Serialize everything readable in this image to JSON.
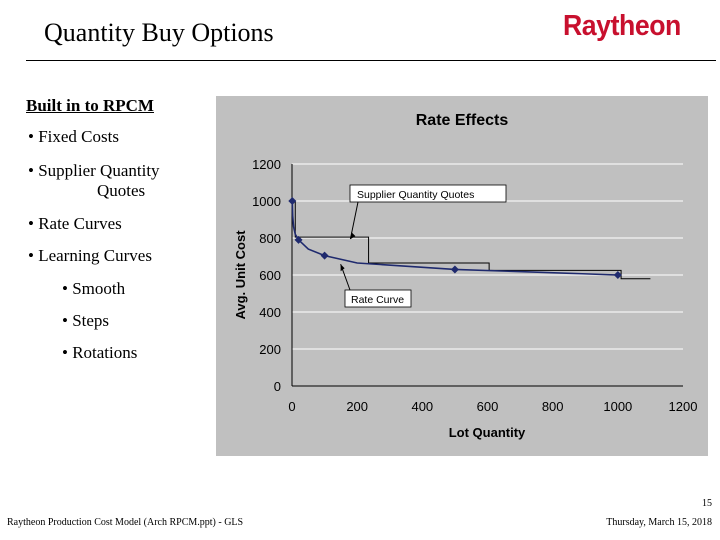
{
  "slide": {
    "title": "Quantity Buy Options",
    "logo": "Raytheon",
    "page_number": "15",
    "footer_left": "Raytheon Production Cost Model (Arch RPCM.ppt) - GLS",
    "footer_right": "Thursday, March 15, 2018"
  },
  "bullets": {
    "heading": "Built in to RPCM",
    "items": [
      {
        "text": "• Fixed Costs"
      },
      {
        "text": "• Supplier Quantity"
      },
      {
        "text": "Quotes"
      },
      {
        "text": "• Rate Curves"
      },
      {
        "text": "• Learning Curves"
      },
      {
        "text": "• Smooth"
      },
      {
        "text": "• Steps"
      },
      {
        "text": "• Rotations"
      }
    ]
  },
  "chart_data": {
    "type": "line",
    "title": "Rate Effects",
    "xlabel": "Lot Quantity",
    "ylabel": "Avg. Unit Cost",
    "xlim": [
      0,
      1200
    ],
    "ylim": [
      0,
      1200
    ],
    "x_ticks": [
      0,
      200,
      400,
      600,
      800,
      1000,
      1200
    ],
    "y_ticks": [
      0,
      200,
      400,
      600,
      800,
      1000,
      1200
    ],
    "grid": "horizontal",
    "series": [
      {
        "name": "Rate Curve",
        "x": [
          1,
          2,
          5,
          10,
          20,
          50,
          100,
          200,
          500,
          1000
        ],
        "y": [
          1000,
          920,
          860,
          820,
          790,
          740,
          705,
          665,
          630,
          600
        ]
      },
      {
        "name": "Supplier Quantity Quotes",
        "x": [
          0,
          10,
          10,
          235,
          235,
          605,
          605,
          1010,
          1010,
          1100
        ],
        "y": [
          1000,
          1000,
          805,
          805,
          665,
          665,
          625,
          625,
          580,
          580
        ]
      }
    ],
    "annotations": [
      {
        "text": "Supplier Quantity Quotes",
        "target_x": 170,
        "target_y": 805
      },
      {
        "text": "Rate Curve",
        "target_x": 140,
        "target_y": 680
      }
    ],
    "colors": {
      "plot_bg": "#c0c0c0",
      "curve": "#1f2a6e",
      "marker": "#1f2a6e",
      "grid": "#ffffff"
    }
  }
}
